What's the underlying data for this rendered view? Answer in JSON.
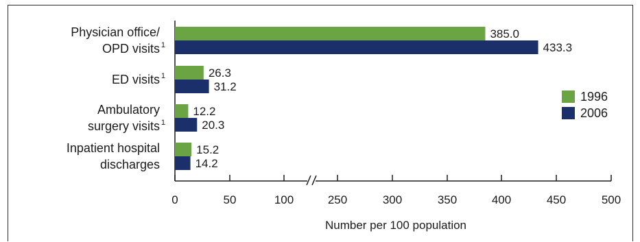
{
  "chart_data": {
    "type": "bar",
    "orientation": "horizontal",
    "title": "",
    "xlabel": "Number per 100 population",
    "ylabel": "",
    "categories": [
      {
        "lines": [
          "Physician office/",
          "OPD visits"
        ],
        "sup": "1"
      },
      {
        "lines": [
          "ED visits"
        ],
        "sup": "1"
      },
      {
        "lines": [
          "Ambulatory",
          "surgery visits"
        ],
        "sup": "1"
      },
      {
        "lines": [
          "Inpatient hospital",
          "discharges"
        ],
        "sup": ""
      }
    ],
    "series": [
      {
        "name": "1996",
        "color": "#6aa443",
        "values": [
          385.0,
          26.3,
          12.2,
          15.2
        ],
        "labels": [
          "385.0",
          "26.3",
          "12.2",
          "15.2"
        ]
      },
      {
        "name": "2006",
        "color": "#1b2f6b",
        "values": [
          433.3,
          31.2,
          20.3,
          14.2
        ],
        "labels": [
          "433.3",
          "31.2",
          "20.3",
          "14.2"
        ]
      }
    ],
    "axis": {
      "broken": true,
      "break_between": [
        100,
        200
      ],
      "ticks": [
        "0",
        "50",
        "100",
        "250",
        "300",
        "350",
        "400",
        "450",
        "500"
      ],
      "xlim": [
        0,
        500
      ]
    },
    "legend": {
      "placement": "right"
    },
    "grid": false
  }
}
